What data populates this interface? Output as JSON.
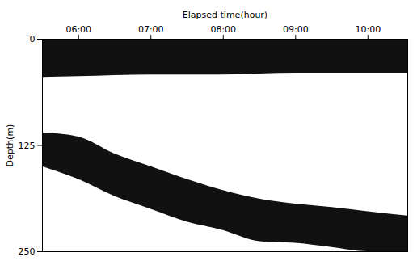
{
  "chart_data": {
    "type": "echogram",
    "x_label": "Elapsed time(hour)",
    "y_label": "Depth(m)",
    "xlim": [
      5.5,
      10.55
    ],
    "xticks": [
      {
        "value": 6,
        "label": "06:00"
      },
      {
        "value": 7,
        "label": "07:00"
      },
      {
        "value": 8,
        "label": "08:00"
      },
      {
        "value": 9,
        "label": "09:00"
      },
      {
        "value": 10,
        "label": "10:00"
      }
    ],
    "ylim": [
      0,
      250
    ],
    "yticks": [
      0,
      125,
      250
    ],
    "color": "#111111",
    "layers": [
      {
        "x": [
          5.5,
          6,
          7,
          8,
          9,
          10,
          10.55
        ],
        "top": [
          0,
          0,
          0,
          0,
          0,
          0,
          0
        ],
        "bottom": [
          45,
          44,
          42,
          42,
          40,
          40,
          40
        ]
      },
      {
        "x": [
          5.5,
          6,
          6.5,
          7,
          7.5,
          8,
          8.5,
          9,
          9.5,
          10,
          10.55
        ],
        "top": [
          110,
          115,
          135,
          150,
          165,
          178,
          188,
          194,
          198,
          203,
          208
        ],
        "bottom": [
          150,
          165,
          185,
          200,
          215,
          225,
          238,
          240,
          245,
          250,
          250
        ]
      }
    ]
  }
}
